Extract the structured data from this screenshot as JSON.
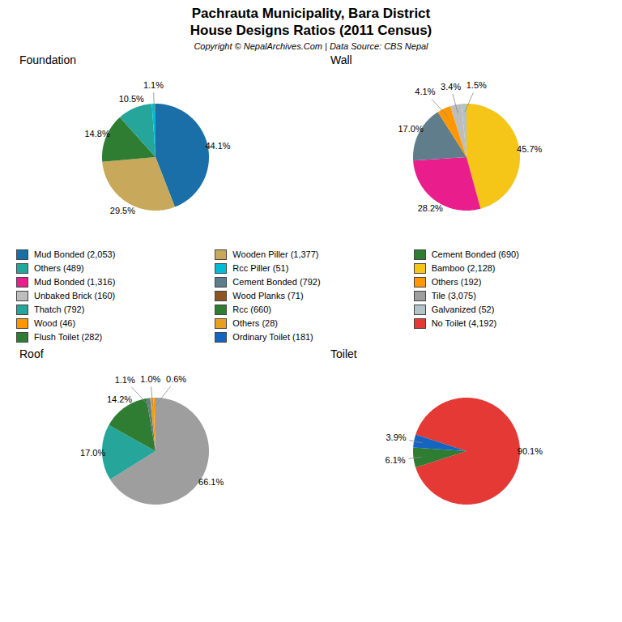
{
  "title": "Pachrauta Municipality, Bara District",
  "subtitle": "House Designs Ratios (2011 Census)",
  "caption": "Copyright © NepalArchives.Com | Data Source: CBS Nepal",
  "series": [
    {
      "name": "Mud Bonded (2,053)",
      "color": "#1a6fa8"
    },
    {
      "name": "Others (489)",
      "color": "#26a69a"
    },
    {
      "name": "Mud Bonded (1,316)",
      "color": "#e91e8c"
    },
    {
      "name": "Unbaked Brick (160)",
      "color": "#bdbdbd"
    },
    {
      "name": "Thatch (792)",
      "color": "#26a69a"
    },
    {
      "name": "Wood (46)",
      "color": "#ff9800"
    },
    {
      "name": "Flush Toilet (282)",
      "color": "#2e7d32"
    },
    {
      "name": "Wooden Piller (1,377)",
      "color": "#c8a85a"
    },
    {
      "name": "Rcc Piller (51)",
      "color": "#00bcd4"
    },
    {
      "name": "Cement Bonded (792)",
      "color": "#607d8b"
    },
    {
      "name": "Wood Planks (71)",
      "color": "#8d5524"
    },
    {
      "name": "Rcc (660)",
      "color": "#2e7d32"
    },
    {
      "name": "Others (28)",
      "color": "#e8a020"
    },
    {
      "name": "Ordinary Toilet (181)",
      "color": "#1565c0"
    },
    {
      "name": "Cement Bonded (690)",
      "color": "#2e7d32"
    },
    {
      "name": "Bamboo (2,128)",
      "color": "#f5c518"
    },
    {
      "name": "Others (192)",
      "color": "#ff9800"
    },
    {
      "name": "Tile (3,075)",
      "color": "#9e9e9e"
    },
    {
      "name": "Galvanized (52)",
      "color": "#b0c4c8"
    },
    {
      "name": "No Toilet (4,192)",
      "color": "#e53935"
    }
  ],
  "chart_data": [
    {
      "type": "pie",
      "title": "Foundation",
      "values": [
        44.1,
        29.5,
        14.8,
        10.5,
        1.1
      ],
      "value_labels": [
        "44.1%",
        "29.5%",
        "14.8%",
        "10.5%",
        "1.1%"
      ],
      "colors": [
        "#1a6fa8",
        "#c8a85a",
        "#2e7d32",
        "#26a69a",
        "#00bcd4"
      ],
      "data_labels": true
    },
    {
      "type": "pie",
      "title": "Wall",
      "values": [
        45.7,
        28.2,
        17.0,
        4.1,
        3.4,
        1.5
      ],
      "value_labels": [
        "45.7%",
        "28.2%",
        "17.0%",
        "4.1%",
        "3.4%",
        "1.5%"
      ],
      "colors": [
        "#f5c518",
        "#e91e8c",
        "#607d8b",
        "#ff9800",
        "#bdbdbd",
        "#b0c4c8"
      ],
      "data_labels": true
    },
    {
      "type": "pie",
      "title": "Roof",
      "values": [
        66.1,
        17.0,
        14.2,
        1.1,
        1.0,
        0.6
      ],
      "value_labels": [
        "66.1%",
        "17.0%",
        "14.2%",
        "1.1%",
        "1.0%",
        "0.6%"
      ],
      "colors": [
        "#9e9e9e",
        "#26a69a",
        "#2e7d32",
        "#607d8b",
        "#e8a020",
        "#ff9800"
      ],
      "data_labels": true
    },
    {
      "type": "pie",
      "title": "Toilet",
      "values": [
        90.1,
        6.1,
        3.9
      ],
      "value_labels": [
        "90.1%",
        "6.1%",
        "3.9%"
      ],
      "colors": [
        "#e53935",
        "#2e7d32",
        "#1565c0"
      ],
      "data_labels": true
    }
  ]
}
